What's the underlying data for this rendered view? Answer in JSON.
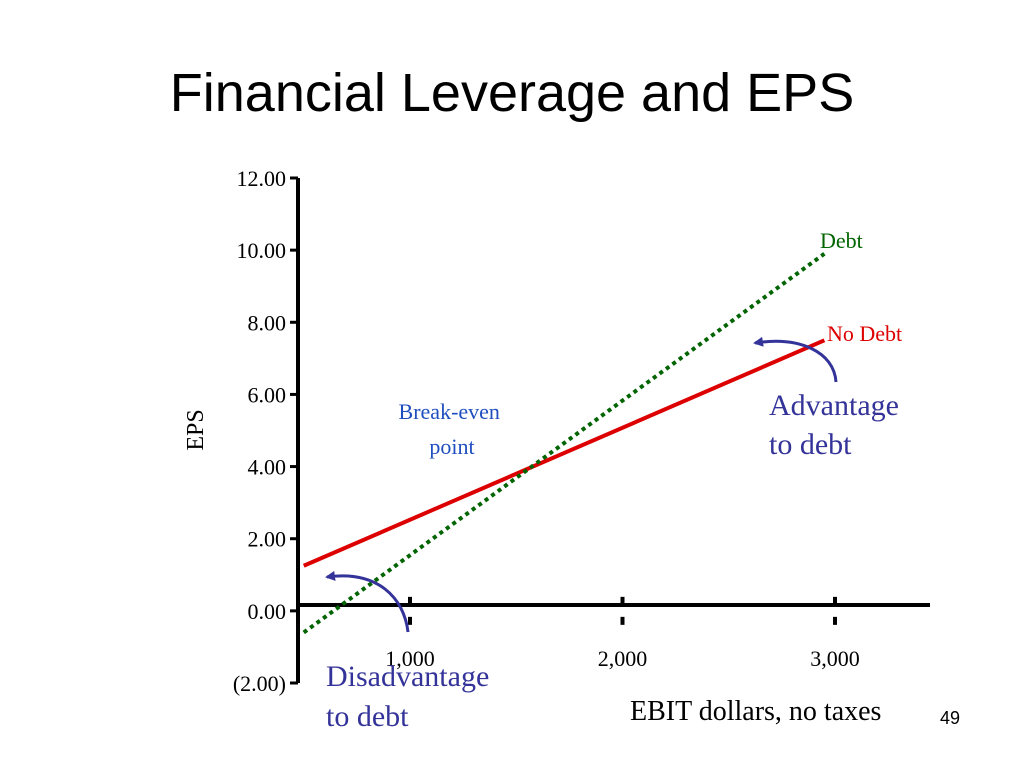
{
  "slide": {
    "title": "Financial Leverage and EPS",
    "page_number": "49"
  },
  "chart_data": {
    "type": "line",
    "title": "",
    "xlabel": "EBIT dollars, no taxes",
    "ylabel": "EPS",
    "xlim": [
      500,
      3400
    ],
    "ylim": [
      -2,
      12
    ],
    "x_ticks": [
      1000,
      2000,
      3000
    ],
    "x_tick_labels": [
      "1,000",
      "2,000",
      "3,000"
    ],
    "y_ticks": [
      12,
      10,
      8,
      6,
      4,
      2,
      0,
      -2
    ],
    "y_tick_labels": [
      "12.00",
      "10.00",
      "8.00",
      "6.00",
      "4.00",
      "2.00",
      "0.00",
      "(2.00)"
    ],
    "grid": false,
    "series": [
      {
        "name": "Debt",
        "color": "#006400",
        "style": "dotted",
        "x": [
          500,
          2950
        ],
        "y": [
          -0.6,
          9.9
        ]
      },
      {
        "name": "No Debt",
        "color": "#dd0000",
        "style": "solid",
        "x": [
          500,
          2950
        ],
        "y": [
          1.25,
          7.5
        ]
      }
    ],
    "annotations": [
      {
        "id": "break-even",
        "lines": [
          "Break-even",
          "point"
        ],
        "color": "#1f4fbf"
      },
      {
        "id": "advantage",
        "lines": [
          "Advantage",
          "to debt"
        ],
        "color": "#333399"
      },
      {
        "id": "disadvantage",
        "lines": [
          "Disadvantage",
          "to debt"
        ],
        "color": "#333399"
      }
    ],
    "arrow_color": "#333399"
  }
}
